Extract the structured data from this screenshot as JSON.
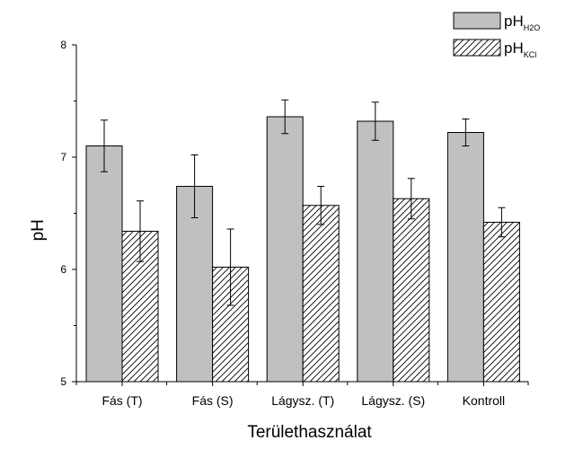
{
  "chart_data": {
    "type": "bar",
    "title": "",
    "xlabel": "Területhasználat",
    "ylabel": "pH",
    "ylim": [
      5,
      8
    ],
    "yticks": [
      5,
      6,
      7,
      8
    ],
    "grid": false,
    "legend_position": "top-right",
    "categories": [
      "Fás (T)",
      "Fás (S)",
      "Lágysz. (T)",
      "Lágysz. (S)",
      "Kontroll"
    ],
    "series": [
      {
        "name": "pH H2O",
        "label_main": "pH",
        "label_sub": "H2O",
        "fill": "solid-gray",
        "color": "#c0c0c0",
        "values": [
          7.1,
          6.74,
          7.36,
          7.32,
          7.22
        ],
        "errors": [
          0.23,
          0.28,
          0.15,
          0.17,
          0.12
        ]
      },
      {
        "name": "pH KCl",
        "label_main": "pH",
        "label_sub": "KCl",
        "fill": "hatched",
        "color": "#ffffff",
        "values": [
          6.34,
          6.02,
          6.57,
          6.63,
          6.42
        ],
        "errors": [
          0.27,
          0.34,
          0.17,
          0.18,
          0.13
        ]
      }
    ]
  }
}
